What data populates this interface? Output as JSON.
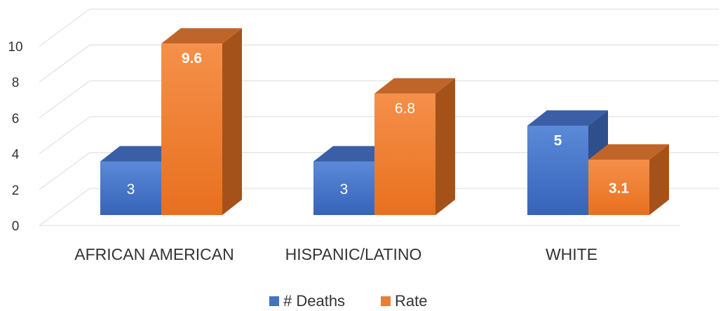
{
  "chart_data": {
    "type": "bar",
    "title": "",
    "xlabel": "",
    "ylabel": "",
    "ylim": [
      0,
      11
    ],
    "yticks": [
      0,
      2,
      4,
      6,
      8,
      10
    ],
    "grid": true,
    "legend": "bottom-center",
    "categories": [
      "AFRICAN AMERICAN",
      "HISPANIC/LATINO",
      "WHITE"
    ],
    "series": [
      {
        "name": "# Deaths",
        "values": [
          3,
          3,
          5
        ],
        "labels": [
          "3",
          "3",
          "5"
        ],
        "label_bold": [
          false,
          false,
          true
        ],
        "color": "#4472C4"
      },
      {
        "name": "Rate",
        "values": [
          9.6,
          6.8,
          3.1
        ],
        "labels": [
          "9.6",
          "6.8",
          "3.1"
        ],
        "label_bold": [
          true,
          false,
          true
        ],
        "color": "#ED7D31"
      }
    ]
  }
}
